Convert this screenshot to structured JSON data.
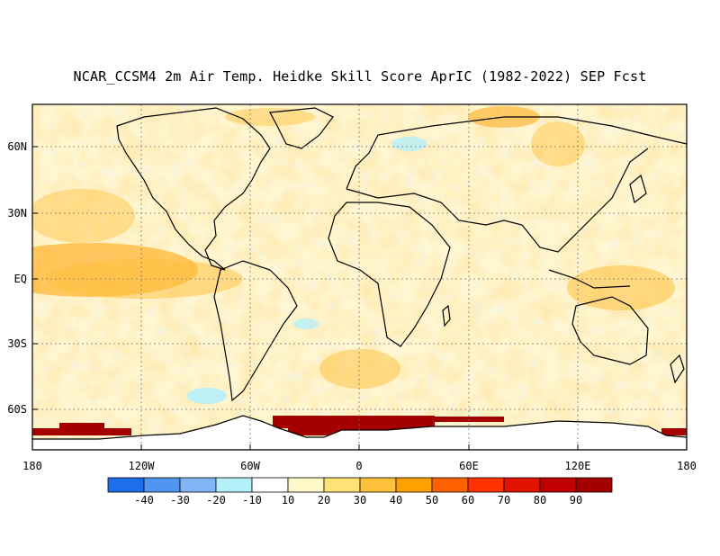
{
  "title": "NCAR_CCSM4 2m Air Temp. Heidke Skill Score AprIC (1982-2022) SEP Fcst",
  "map": {
    "lat_ticks": [
      "60N",
      "30N",
      "EQ",
      "30S",
      "60S"
    ],
    "lon_ticks": [
      "180",
      "120W",
      "60W",
      "0",
      "60E",
      "120E",
      "180"
    ]
  },
  "colorbar": {
    "labels": [
      "-40",
      "-30",
      "-20",
      "-10",
      "10",
      "20",
      "30",
      "40",
      "50",
      "60",
      "70",
      "80",
      "90"
    ],
    "colors": [
      "#1e6eeb",
      "#5096f0",
      "#82b4fa",
      "#b4f0fa",
      "#ffffff",
      "#fffac8",
      "#ffe178",
      "#ffc03c",
      "#ffa000",
      "#ff6000",
      "#ff3200",
      "#e11400",
      "#c00000",
      "#a50000"
    ]
  }
}
